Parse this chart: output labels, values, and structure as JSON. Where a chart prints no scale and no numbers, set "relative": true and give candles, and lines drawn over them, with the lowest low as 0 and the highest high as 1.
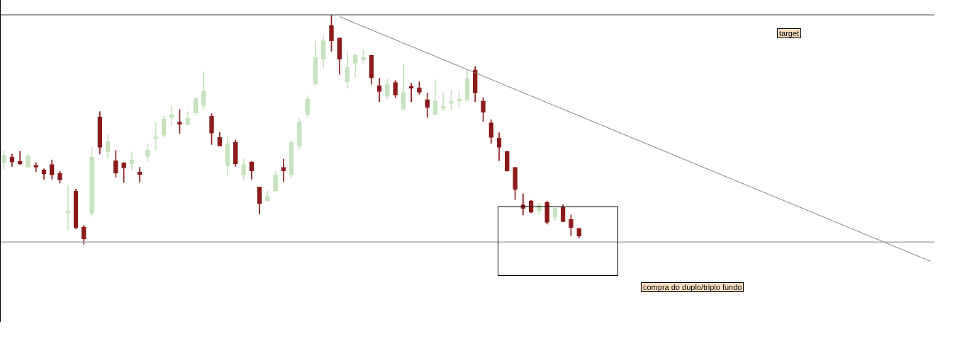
{
  "chart_data": {
    "type": "candlestick",
    "relative": true,
    "categories": [
      null,
      null,
      null,
      null,
      null,
      null,
      null,
      null,
      null,
      null,
      null,
      null,
      null,
      null,
      null,
      null,
      null,
      null,
      null,
      null,
      null,
      null,
      null,
      null,
      null,
      null,
      null,
      null,
      null,
      null,
      null,
      null,
      null,
      null,
      null,
      null,
      null,
      null,
      null,
      null,
      null,
      null,
      null,
      null,
      null,
      null,
      null,
      null,
      null,
      null,
      null,
      null,
      null,
      null,
      null,
      null,
      null,
      null,
      null,
      null,
      null,
      null,
      null,
      null,
      null,
      null,
      null,
      null,
      null,
      null,
      null,
      null,
      null,
      null,
      null,
      null,
      null,
      null,
      null,
      null,
      null,
      null,
      null,
      null,
      null,
      null,
      null,
      null,
      null,
      null,
      null,
      null,
      null,
      null,
      null,
      null,
      null,
      null,
      null,
      null,
      null,
      null,
      null,
      null,
      null,
      null,
      null,
      null,
      null,
      null,
      null,
      null,
      null,
      null,
      null,
      null,
      null
    ],
    "ohlc": [
      [
        0.355,
        0.408,
        0.327,
        0.387
      ],
      [
        0.379,
        0.393,
        0.338,
        0.358
      ],
      [
        0.361,
        0.405,
        0.347,
        0.35
      ],
      [
        0.335,
        0.396,
        0.335,
        0.384
      ],
      [
        0.344,
        0.355,
        0.315,
        0.335
      ],
      [
        0.324,
        0.329,
        0.283,
        0.306
      ],
      [
        0.347,
        0.367,
        0.283,
        0.301
      ],
      [
        0.309,
        0.318,
        0.266,
        0.28
      ],
      [
        0.136,
        0.257,
        0.061,
        0.145
      ],
      [
        0.231,
        0.24,
        0.066,
        0.072
      ],
      [
        0.075,
        0.081,
        0,
        0.023
      ],
      [
        0.133,
        0.422,
        0.121,
        0.379
      ],
      [
        0.555,
        0.578,
        0.393,
        0.422
      ],
      [
        0.402,
        0.477,
        0.373,
        0.448
      ],
      [
        0.364,
        0.408,
        0.292,
        0.309
      ],
      [
        0.355,
        0.355,
        0.269,
        0.332
      ],
      [
        0.35,
        0.402,
        0.324,
        0.367
      ],
      [
        0.315,
        0.335,
        0.269,
        0.303
      ],
      [
        0.382,
        0.439,
        0.358,
        0.41
      ],
      [
        0.46,
        0.532,
        0.41,
        0.468
      ],
      [
        0.474,
        0.558,
        0.465,
        0.546
      ],
      [
        0.549,
        0.604,
        0.517,
        0.566
      ],
      [
        0.532,
        0.587,
        0.483,
        0.523
      ],
      [
        0.52,
        0.578,
        0.52,
        0.549
      ],
      [
        0.572,
        0.636,
        0.561,
        0.636
      ],
      [
        0.604,
        0.751,
        0.587,
        0.668
      ],
      [
        0.558,
        0.569,
        0.434,
        0.483
      ],
      [
        0.465,
        0.488,
        0.428,
        0.428
      ],
      [
        0.341,
        0.468,
        0.301,
        0.439
      ],
      [
        0.445,
        0.454,
        0.338,
        0.35
      ],
      [
        0.301,
        0.37,
        0.277,
        0.347
      ],
      [
        0.358,
        0.361,
        0.283,
        0.318
      ],
      [
        0.249,
        0.249,
        0.13,
        0.176
      ],
      [
        0.188,
        0.234,
        0.188,
        0.211
      ],
      [
        0.231,
        0.315,
        0.231,
        0.301
      ],
      [
        0.335,
        0.37,
        0.272,
        0.318
      ],
      [
        0.303,
        0.448,
        0.289,
        0.445
      ],
      [
        0.428,
        0.549,
        0.413,
        0.532
      ],
      [
        0.566,
        0.647,
        0.549,
        0.633
      ],
      [
        0.697,
        0.884,
        0.697,
        0.815
      ],
      [
        0.806,
        0.91,
        0.769,
        0.887
      ],
      [
        0.954,
        1,
        0.841,
        0.887
      ],
      [
        0.899,
        0.899,
        0.74,
        0.806
      ],
      [
        0.708,
        0.838,
        0.679,
        0.772
      ],
      [
        0.789,
        0.829,
        0.728,
        0.824
      ],
      [
        0.803,
        0.847,
        0.789,
        0.815
      ],
      [
        0.824,
        0.824,
        0.697,
        0.725
      ],
      [
        0.691,
        0.723,
        0.621,
        0.665
      ],
      [
        0.645,
        0.72,
        0.633,
        0.697
      ],
      [
        0.705,
        0.714,
        0.639,
        0.65
      ],
      [
        0.587,
        0.783,
        0.587,
        0.662
      ],
      [
        0.688,
        0.702,
        0.621,
        0.679
      ],
      [
        0.682,
        0.708,
        0.653,
        0.662
      ],
      [
        0.63,
        0.659,
        0.552,
        0.595
      ],
      [
        0.566,
        0.717,
        0.566,
        0.624
      ],
      [
        0.592,
        0.659,
        0.584,
        0.601
      ],
      [
        0.613,
        0.668,
        0.587,
        0.624
      ],
      [
        0.624,
        0.668,
        0.595,
        0.633
      ],
      [
        0.627,
        0.766,
        0.627,
        0.723
      ],
      [
        0.76,
        0.775,
        0.621,
        0.659
      ],
      [
        0.624,
        0.639,
        0.535,
        0.575
      ],
      [
        0.529,
        0.543,
        0.439,
        0.465
      ],
      [
        0.462,
        0.486,
        0.364,
        0.422
      ],
      [
        0.405,
        0.405,
        0.318,
        0.318
      ],
      [
        0.335,
        0.335,
        0.194,
        0.237
      ],
      [
        0.171,
        0.22,
        0.127,
        0.156
      ],
      [
        0.188,
        0.191,
        0.136,
        0.139
      ],
      [
        0.145,
        0.179,
        0.13,
        0.171
      ],
      [
        0.182,
        0.188,
        0.087,
        0.095
      ],
      [
        0.118,
        0.162,
        0.104,
        0.156
      ],
      [
        0.162,
        0.171,
        0.098,
        0.098
      ],
      [
        0.107,
        0.127,
        0.035,
        0.072
      ],
      [
        0.069,
        0.069,
        0.026,
        0.035
      ],
      null,
      null,
      null,
      null,
      null,
      null,
      null,
      null,
      null,
      null,
      null,
      null,
      null,
      null,
      null,
      null,
      null,
      null,
      null,
      null,
      null,
      null,
      null,
      null,
      null,
      null,
      null,
      null,
      null,
      null,
      null,
      null,
      null,
      null,
      null,
      null,
      null,
      null,
      null,
      null,
      null,
      null,
      null,
      null
    ],
    "colors": [
      "#c6e3c0",
      "#8b1a1a",
      "#8b1a1a",
      "#c6e3c0",
      "#8b1a1a",
      "#8b1a1a",
      "#8b1a1a",
      "#8b1a1a",
      "#c6e3c0",
      "#8b1a1a",
      "#8b1a1a",
      "#c6e3c0",
      "#8b1a1a",
      "#c6e3c0",
      "#8b1a1a",
      "#8b1a1a",
      "#c6e3c0",
      "#8b1a1a",
      "#c6e3c0",
      "#c6e3c0",
      "#c6e3c0",
      "#c6e3c0",
      "#8b1a1a",
      "#c6e3c0",
      "#c6e3c0",
      "#c6e3c0",
      "#8b1a1a",
      "#8b1a1a",
      "#c6e3c0",
      "#8b1a1a",
      "#c6e3c0",
      "#8b1a1a",
      "#8b1a1a",
      "#c6e3c0",
      "#c6e3c0",
      "#8b1a1a",
      "#c6e3c0",
      "#c6e3c0",
      "#c6e3c0",
      "#c6e3c0",
      "#c6e3c0",
      "#8b1a1a",
      "#8b1a1a",
      "#c6e3c0",
      "#c6e3c0",
      "#c6e3c0",
      "#8b1a1a",
      "#8b1a1a",
      "#c6e3c0",
      "#8b1a1a",
      "#c6e3c0",
      "#8b1a1a",
      "#8b1a1a",
      "#8b1a1a",
      "#c6e3c0",
      "#c6e3c0",
      "#c6e3c0",
      "#c6e3c0",
      "#c6e3c0",
      "#8b1a1a",
      "#8b1a1a",
      "#8b1a1a",
      "#8b1a1a",
      "#8b1a1a",
      "#8b1a1a",
      "#8b1a1a",
      "#8b1a1a",
      "#c6e3c0",
      "#8b1a1a",
      "#c6e3c0",
      "#8b1a1a",
      "#8b1a1a",
      "#8b1a1a",
      null,
      null,
      null,
      null,
      null,
      null,
      null,
      null,
      null,
      null,
      null,
      null,
      null,
      null,
      null,
      null,
      null,
      null,
      null,
      null,
      null,
      null,
      null,
      null,
      null,
      null,
      null,
      null,
      null,
      null,
      null,
      null,
      null,
      null,
      null,
      null,
      null,
      null,
      null,
      null,
      null,
      null,
      null,
      null
    ],
    "series": [
      {
        "type": "line",
        "color": "#808080",
        "values": [
          null,
          null,
          null,
          null,
          null,
          null,
          null,
          null,
          null,
          null,
          null,
          null,
          null,
          null,
          null,
          null,
          null,
          null,
          null,
          null,
          null,
          null,
          null,
          null,
          null,
          null,
          null,
          null,
          null,
          null,
          null,
          null,
          null,
          null,
          null,
          null,
          null,
          null,
          null,
          null,
          null,
          null,
          0.992,
          null,
          null,
          null,
          null,
          null,
          null,
          null,
          null,
          null,
          null,
          null,
          null,
          null,
          null,
          null,
          null,
          null,
          null,
          null,
          null,
          null,
          null,
          null,
          null,
          null,
          null,
          null,
          null,
          null,
          null,
          null,
          null,
          null,
          null,
          null,
          null,
          null,
          null,
          null,
          null,
          null,
          null,
          null,
          null,
          null,
          null,
          null,
          null,
          null,
          null,
          null,
          null,
          null,
          null,
          null,
          null,
          null,
          null,
          null,
          null,
          null,
          null,
          null,
          null,
          null,
          null,
          null,
          null,
          null,
          null,
          null,
          null,
          null,
          -0.075
        ]
      }
    ],
    "ref_lines": [
      {
        "axis": "y",
        "value": 1,
        "color": "#808080"
      },
      {
        "axis": "y",
        "value": 0.009,
        "color": "#a8a8a8"
      }
    ],
    "annotations": [
      "target",
      "compra do duplo/triplo fundo"
    ],
    "grid": false,
    "legend": false
  }
}
